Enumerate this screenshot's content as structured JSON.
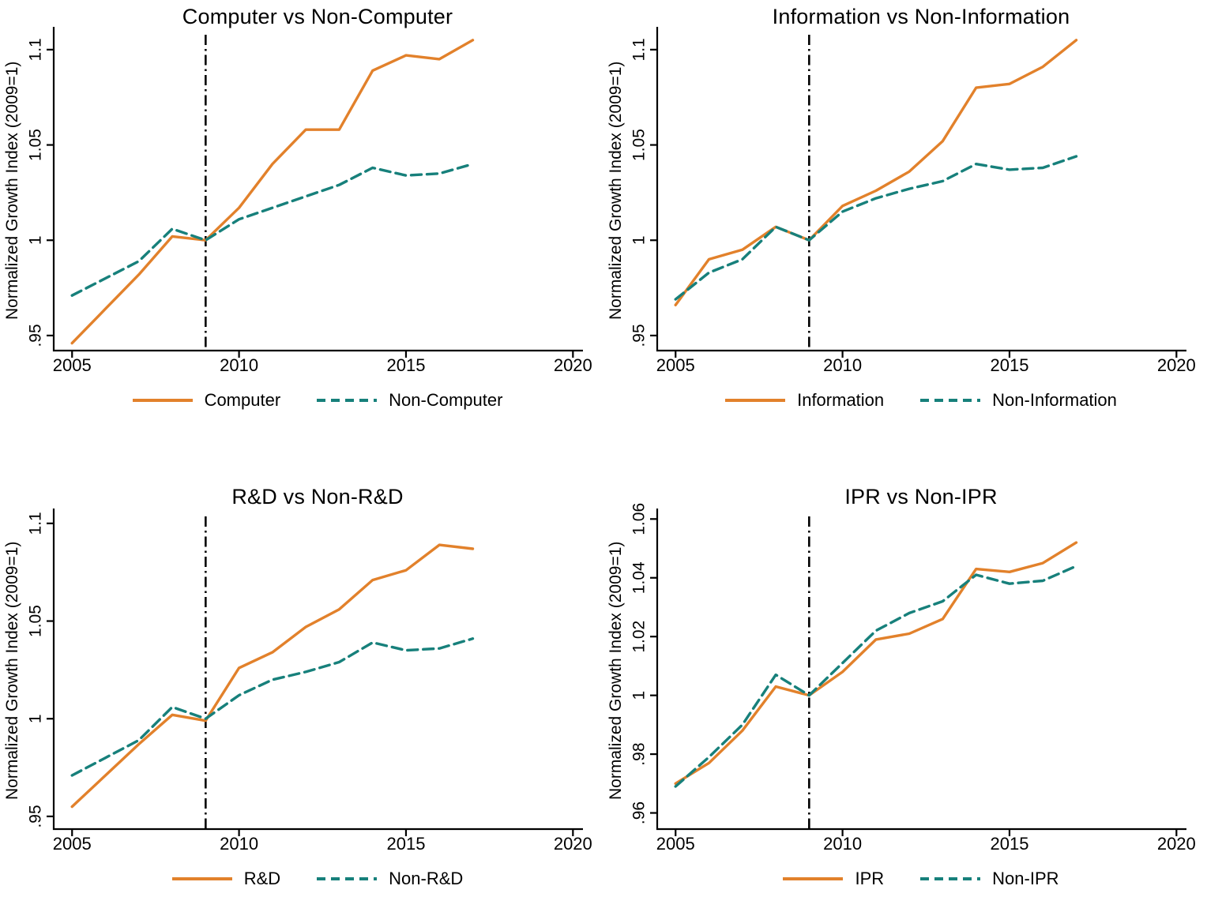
{
  "page": {
    "background": "#ffffff"
  },
  "colors": {
    "series_a": "#E2812B",
    "series_b": "#17807B",
    "axis": "#000000",
    "event_line": "#000000",
    "text": "#000000"
  },
  "axes_shared": {
    "ylabel": "Normalized Growth Index (2009=1)",
    "x_ticks": [
      2005,
      2010,
      2015,
      2020
    ],
    "x_tick_labels": [
      "2005",
      "2010",
      "2015",
      "2020"
    ],
    "event_year": 2009,
    "legend_position": "bottom",
    "grid": false
  },
  "chart_data": [
    {
      "type": "line",
      "title": "Computer vs Non-Computer",
      "ylabel": "Normalized Growth Index (2009=1)",
      "xlim": [
        2004.45,
        2020.3
      ],
      "ylim": [
        0.9421,
        1.1103
      ],
      "yticks": {
        "values": [
          0.95,
          1.0,
          1.05,
          1.1
        ],
        "labels": [
          ".95",
          "1",
          "1.05",
          "1.1"
        ]
      },
      "x": [
        2005,
        2006,
        2007,
        2008,
        2009,
        2010,
        2011,
        2012,
        2013,
        2014,
        2015,
        2016,
        2017
      ],
      "series": [
        {
          "name": "Computer",
          "color": "series_a",
          "line_style": "solid",
          "values": [
            0.946,
            0.964,
            0.982,
            1.002,
            1.0,
            1.017,
            1.04,
            1.058,
            1.058,
            1.089,
            1.097,
            1.095,
            1.105
          ]
        },
        {
          "name": "Non-Computer",
          "color": "series_b",
          "line_style": "dashed",
          "values": [
            0.971,
            0.98,
            0.989,
            1.006,
            1.0,
            1.011,
            1.017,
            1.023,
            1.029,
            1.038,
            1.034,
            1.035,
            1.04
          ]
        }
      ]
    },
    {
      "type": "line",
      "title": "Information vs Non-Information",
      "ylabel": "Normalized Growth Index (2009=1)",
      "xlim": [
        2004.45,
        2020.3
      ],
      "ylim": [
        0.9421,
        1.1103
      ],
      "yticks": {
        "values": [
          0.95,
          1.0,
          1.05,
          1.1
        ],
        "labels": [
          ".95",
          "1",
          "1.05",
          "1.1"
        ]
      },
      "x": [
        2005,
        2006,
        2007,
        2008,
        2009,
        2010,
        2011,
        2012,
        2013,
        2014,
        2015,
        2016,
        2017
      ],
      "series": [
        {
          "name": "Information",
          "color": "series_a",
          "line_style": "solid",
          "values": [
            0.966,
            0.99,
            0.995,
            1.007,
            1.0,
            1.018,
            1.026,
            1.036,
            1.052,
            1.08,
            1.082,
            1.091,
            1.105
          ]
        },
        {
          "name": "Non-Information",
          "color": "series_b",
          "line_style": "dashed",
          "values": [
            0.969,
            0.983,
            0.99,
            1.007,
            1.0,
            1.015,
            1.022,
            1.027,
            1.031,
            1.04,
            1.037,
            1.038,
            1.044
          ]
        }
      ]
    },
    {
      "type": "line",
      "title": "R&D vs Non-R&D",
      "ylabel": "Normalized Growth Index (2009=1)",
      "xlim": [
        2004.45,
        2020.3
      ],
      "ylim": [
        0.9435,
        1.106
      ],
      "yticks": {
        "values": [
          0.95,
          1.0,
          1.05,
          1.1
        ],
        "labels": [
          ".95",
          "1",
          "1.05",
          "1.1"
        ]
      },
      "x": [
        2005,
        2006,
        2007,
        2008,
        2009,
        2010,
        2011,
        2012,
        2013,
        2014,
        2015,
        2016,
        2017
      ],
      "series": [
        {
          "name": "R&D",
          "color": "series_a",
          "line_style": "solid",
          "values": [
            0.955,
            0.971,
            0.987,
            1.002,
            0.999,
            1.026,
            1.034,
            1.047,
            1.056,
            1.071,
            1.076,
            1.089,
            1.087
          ]
        },
        {
          "name": "Non-R&D",
          "color": "series_b",
          "line_style": "dashed",
          "values": [
            0.971,
            0.98,
            0.989,
            1.006,
            1.0,
            1.012,
            1.02,
            1.024,
            1.029,
            1.039,
            1.035,
            1.036,
            1.041
          ]
        }
      ]
    },
    {
      "type": "line",
      "title": "IPR vs Non-IPR",
      "ylabel": "Normalized Growth Index (2009=1)",
      "xlim": [
        2004.45,
        2020.3
      ],
      "ylim": [
        0.9545,
        1.0625
      ],
      "yticks": {
        "values": [
          0.96,
          0.98,
          1.0,
          1.02,
          1.04,
          1.06
        ],
        "labels": [
          ".96",
          ".98",
          "1",
          "1.02",
          "1.04",
          "1.06"
        ]
      },
      "x": [
        2005,
        2006,
        2007,
        2008,
        2009,
        2010,
        2011,
        2012,
        2013,
        2014,
        2015,
        2016,
        2017
      ],
      "series": [
        {
          "name": "IPR",
          "color": "series_a",
          "line_style": "solid",
          "values": [
            0.97,
            0.977,
            0.988,
            1.003,
            1.0,
            1.008,
            1.019,
            1.021,
            1.026,
            1.043,
            1.042,
            1.045,
            1.052
          ]
        },
        {
          "name": "Non-IPR",
          "color": "series_b",
          "line_style": "dashed",
          "values": [
            0.969,
            0.979,
            0.99,
            1.007,
            1.0,
            1.011,
            1.022,
            1.028,
            1.032,
            1.041,
            1.038,
            1.039,
            1.044
          ]
        }
      ]
    }
  ]
}
